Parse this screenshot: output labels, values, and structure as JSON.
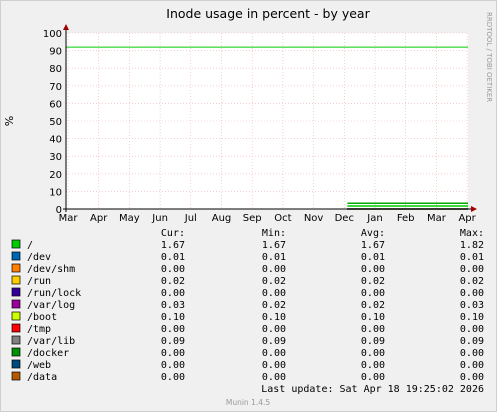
{
  "chart_data": {
    "type": "line",
    "title": "Inode usage in percent - by year",
    "ylabel": "%",
    "watermark": "RRDTOOL / TOBI OETIKER",
    "footer": "Munin 1.4.5",
    "ylim": [
      0,
      100
    ],
    "yticks": [
      "0",
      "10",
      "20",
      "30",
      "40",
      "50",
      "60",
      "70",
      "80",
      "90",
      "100"
    ],
    "xticks": [
      "Mar",
      "Apr",
      "May",
      "Jun",
      "Jul",
      "Aug",
      "Sep",
      "Oct",
      "Nov",
      "Dec",
      "Jan",
      "Feb",
      "Mar",
      "Apr"
    ],
    "warning_line": 92,
    "warning_color": "#00cc00",
    "series_start_tick_index": 9.1,
    "legend_headers": {
      "cur": "Cur:",
      "min": "Min:",
      "avg": "Avg:",
      "max": "Max:"
    },
    "series": [
      {
        "name": "/",
        "color": "#00cc00",
        "cur": "1.67",
        "min": "1.67",
        "avg": "1.67",
        "max": "1.82",
        "value": 1.67
      },
      {
        "name": "/dev",
        "color": "#0066b3",
        "cur": "0.01",
        "min": "0.01",
        "avg": "0.01",
        "max": "0.01",
        "value": 0.01
      },
      {
        "name": "/dev/shm",
        "color": "#ff8000",
        "cur": "0.00",
        "min": "0.00",
        "avg": "0.00",
        "max": "0.00",
        "value": 0.0
      },
      {
        "name": "/run",
        "color": "#ffcc00",
        "cur": "0.02",
        "min": "0.02",
        "avg": "0.02",
        "max": "0.02",
        "value": 0.02
      },
      {
        "name": "/run/lock",
        "color": "#330099",
        "cur": "0.00",
        "min": "0.00",
        "avg": "0.00",
        "max": "0.00",
        "value": 0.0
      },
      {
        "name": "/var/log",
        "color": "#990099",
        "cur": "0.03",
        "min": "0.02",
        "avg": "0.02",
        "max": "0.03",
        "value": 0.03
      },
      {
        "name": "/boot",
        "color": "#ccff00",
        "cur": "0.10",
        "min": "0.10",
        "avg": "0.10",
        "max": "0.10",
        "value": 0.1
      },
      {
        "name": "/tmp",
        "color": "#ff0000",
        "cur": "0.00",
        "min": "0.00",
        "avg": "0.00",
        "max": "0.00",
        "value": 0.0
      },
      {
        "name": "/var/lib",
        "color": "#808080",
        "cur": "0.09",
        "min": "0.09",
        "avg": "0.09",
        "max": "0.09",
        "value": 0.09
      },
      {
        "name": "/docker",
        "color": "#008f00",
        "cur": "0.00",
        "min": "0.00",
        "avg": "0.00",
        "max": "0.00",
        "value": 0.0
      },
      {
        "name": "/web",
        "color": "#00487d",
        "cur": "0.00",
        "min": "0.00",
        "avg": "0.00",
        "max": "0.00",
        "value": 0.0
      },
      {
        "name": "/data",
        "color": "#b35a00",
        "cur": "0.00",
        "min": "0.00",
        "avg": "0.00",
        "max": "0.00",
        "value": 0.0
      }
    ],
    "last_update": "Last update:  Sat Apr 18 19:25:02 2026"
  }
}
